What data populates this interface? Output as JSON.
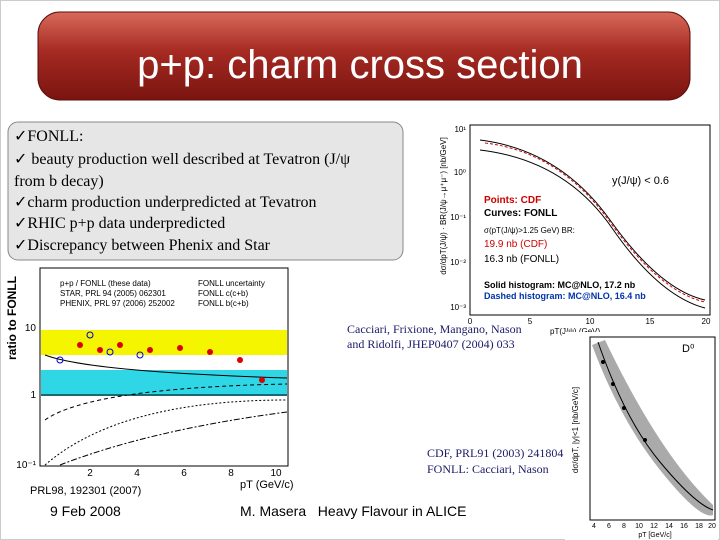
{
  "header": {
    "title": "p+p: charm cross section"
  },
  "bullets": [
    "✓FONLL:",
    "✓ beauty production well described at Tevatron (J/ψ",
    "from b decay)",
    "✓charm production underpredicted at Tevatron",
    "✓RHIC p+p data underpredicted",
    "✓Discrepancy between Phenix and Star"
  ],
  "left_plot": {
    "ylabel": "ratio to FONLL",
    "xlabel": "pT (GeV/c)",
    "yticks": [
      "10",
      "1",
      "10⁻¹"
    ],
    "xticks": [
      "2",
      "4",
      "6",
      "8",
      "10"
    ],
    "legend": [
      "p+p / FONLL (these data)",
      "STAR, PRL 94 (2005) 062301",
      "PHENIX, PRL 97 (2006) 252002",
      "FONLL uncertainty",
      "FONLL c(c+b)",
      "FONLL b(c+b)"
    ],
    "source": "PRL98, 192301 (2007)"
  },
  "top_right_plot": {
    "ylabel": "dσ/dpT(J/ψ) · BR(J/ψ→μ⁺μ⁻) [nb/GeV]",
    "xlabel": "pT(J/ψ) (GeV)",
    "yticks": [
      "10¹",
      "10⁰",
      "10⁻¹",
      "10⁻²",
      "10⁻³"
    ],
    "xticks": [
      "0",
      "5",
      "10",
      "15",
      "20"
    ],
    "notes": [
      "y(J/ψ) < 0.6",
      "Points: CDF",
      "Curves: FONLL",
      "σ(pT(J/ψ)>1.25 GeV) BR:",
      "19.9 nb (CDF)",
      "16.3 nb (FONLL)",
      "Solid histogram: MC@NLO, 17.2 nb",
      "Dashed histogram: MC@NLO, 16.4 nb"
    ],
    "citation": [
      "Cacciari, Frixione, Mangano, Nason",
      "and Ridolfi, JHEP0407 (2004) 033"
    ]
  },
  "bottom_right_plot": {
    "label": "D⁰",
    "ylabel": "dσ/dpT, |y|<1 [nb/GeV/c]",
    "xlabel": "pT [GeV/c]",
    "xticks": [
      "4",
      "6",
      "8",
      "10",
      "12",
      "14",
      "16",
      "18",
      "20"
    ],
    "citation": [
      "CDF, PRL91 (2003) 241804",
      "FONLL: Cacciari, Nason"
    ]
  },
  "footer": {
    "date": "9 Feb 2008",
    "author": "M. Masera   Heavy Flavour in ALICE"
  }
}
